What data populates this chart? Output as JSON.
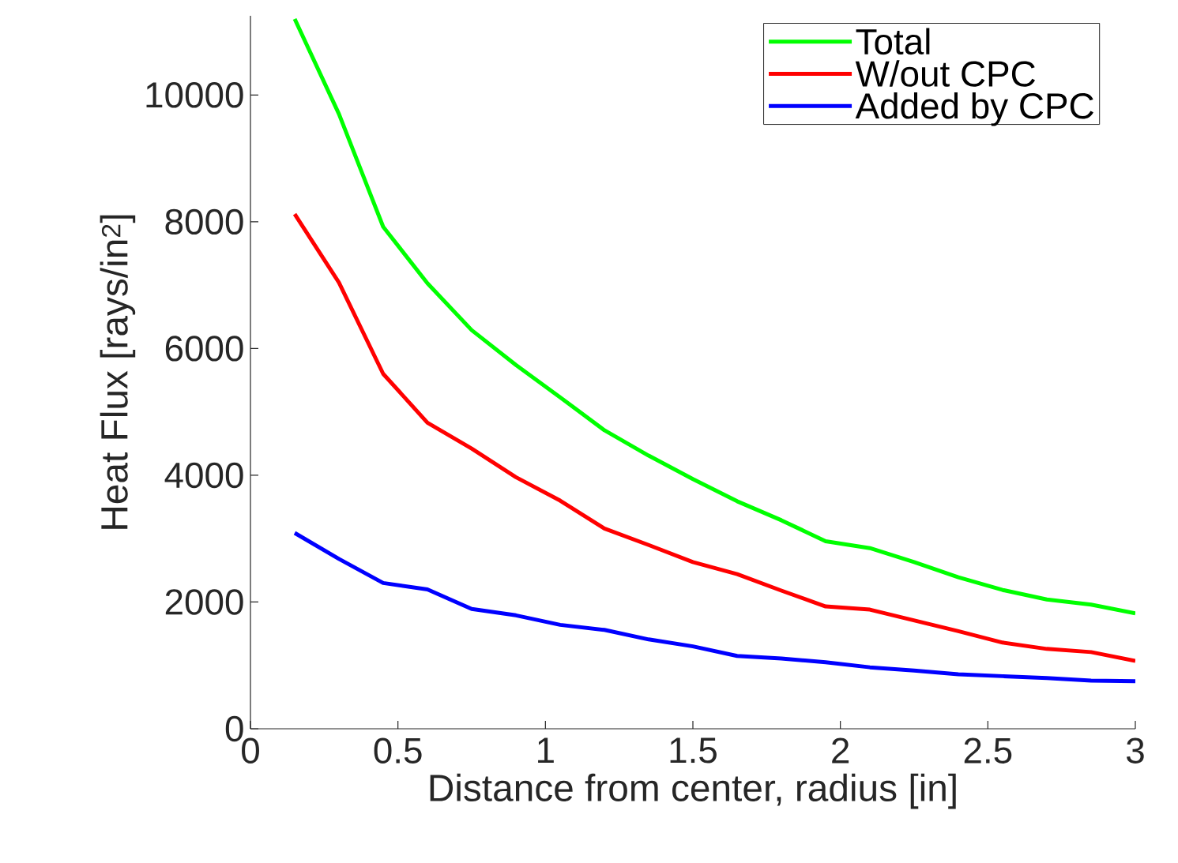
{
  "chart_data": {
    "type": "line",
    "xlabel": "Distance from center, radius [in]",
    "ylabel": "Heat Flux [rays/in$^{2}$]",
    "x": [
      0.15,
      0.3,
      0.45,
      0.6,
      0.75,
      0.9,
      1.05,
      1.2,
      1.35,
      1.5,
      1.65,
      1.8,
      1.95,
      2.1,
      2.25,
      2.4,
      2.55,
      2.7,
      2.85,
      3.0
    ],
    "series": [
      {
        "name": "Total",
        "color": "#00ff00",
        "values": [
          11200,
          9700,
          7920,
          7030,
          6290,
          5740,
          5230,
          4710,
          4310,
          3940,
          3590,
          3290,
          2960,
          2850,
          2630,
          2390,
          2190,
          2040,
          1960,
          1820
        ]
      },
      {
        "name": "W/out CPC",
        "color": "#ff0000",
        "values": [
          8120,
          7040,
          5600,
          4830,
          4420,
          3970,
          3600,
          3160,
          2900,
          2630,
          2440,
          2180,
          1930,
          1880,
          1710,
          1540,
          1360,
          1260,
          1210,
          1070
        ]
      },
      {
        "name": "Added by CPC",
        "color": "#0000ff",
        "values": [
          3090,
          2680,
          2300,
          2200,
          1890,
          1790,
          1640,
          1560,
          1410,
          1300,
          1150,
          1110,
          1050,
          970,
          920,
          860,
          830,
          800,
          760,
          750
        ]
      }
    ],
    "xlim": [
      0,
      3
    ],
    "ylim": [
      0,
      11250
    ],
    "xticks": [
      0,
      0.5,
      1,
      1.5,
      2,
      2.5,
      3
    ],
    "yticks": [
      0,
      2000,
      4000,
      6000,
      8000,
      10000
    ],
    "legend": "top right",
    "grid": false,
    "marker": "none",
    "line_style": "solid"
  }
}
